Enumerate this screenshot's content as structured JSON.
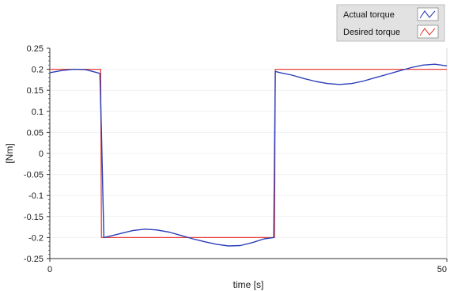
{
  "chart_data": {
    "type": "line",
    "title": "",
    "xlabel": "time [s]",
    "ylabel": "[Nm]",
    "xlim": [
      0,
      50
    ],
    "ylim": [
      -0.25,
      0.25
    ],
    "x_ticks": [
      "0",
      "50"
    ],
    "y_ticks": [
      "0.25",
      "0.2",
      "0.15",
      "0.1",
      "0.05",
      "0",
      "-0.05",
      "-0.1",
      "-0.15",
      "-0.2",
      "-0.25"
    ],
    "legend_position": "top-right",
    "series": [
      {
        "name": "Desired torque",
        "color": "#e8413a",
        "x": [
          0,
          6.4,
          6.5,
          28.3,
          28.4,
          50
        ],
        "y": [
          0.2,
          0.2,
          -0.2,
          -0.2,
          0.2,
          0.2
        ]
      },
      {
        "name": "Actual torque",
        "color": "#2b3fb8",
        "x": [
          0,
          1.5,
          3,
          4.5,
          6.0,
          6.3,
          6.5,
          6.8,
          7.5,
          9,
          10.5,
          12,
          13.5,
          15,
          16.5,
          18,
          19.5,
          21,
          22.5,
          24,
          25.5,
          27,
          28.2,
          28.4,
          29,
          30.5,
          32,
          33.5,
          35,
          36.5,
          38,
          39.5,
          41,
          42.5,
          44,
          45.5,
          47,
          48.5,
          50
        ],
        "y": [
          0.192,
          0.197,
          0.2,
          0.199,
          0.192,
          0.19,
          0.05,
          -0.2,
          -0.197,
          -0.19,
          -0.183,
          -0.18,
          -0.182,
          -0.187,
          -0.195,
          -0.203,
          -0.21,
          -0.216,
          -0.22,
          -0.219,
          -0.212,
          -0.203,
          -0.2,
          0.195,
          0.192,
          0.186,
          0.178,
          0.171,
          0.166,
          0.164,
          0.166,
          0.172,
          0.18,
          0.188,
          0.196,
          0.204,
          0.21,
          0.212,
          0.208
        ]
      }
    ]
  }
}
